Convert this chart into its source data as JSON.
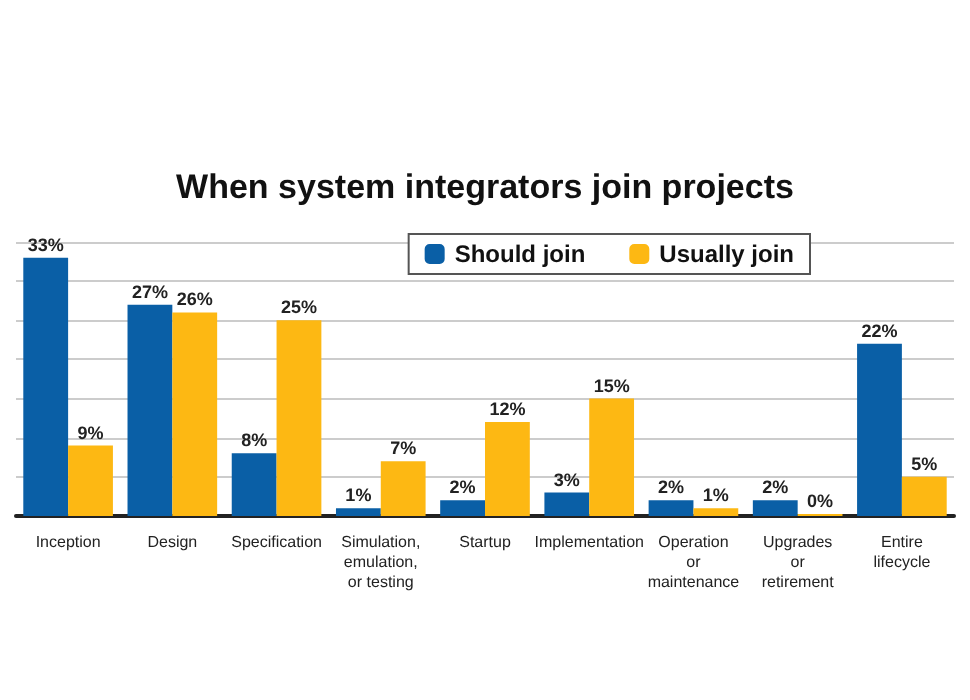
{
  "chart_data": {
    "type": "bar",
    "title": "When system integrators join projects",
    "categories": [
      "Inception",
      "Design",
      "Specification",
      "Simulation,\nemulation,\nor testing",
      "Startup",
      "Implementation",
      "Operation\nor\nmaintenance",
      "Upgrades\nor\nretirement",
      "Entire\nlifecycle"
    ],
    "series": [
      {
        "name": "Should join",
        "color": "#0a5fa6",
        "values": [
          33,
          27,
          8,
          1,
          2,
          3,
          2,
          2,
          22
        ],
        "value_labels": [
          "33%",
          "27%",
          "8%",
          "1%",
          "2%",
          "3%",
          "2%",
          "2%",
          "22%"
        ]
      },
      {
        "name": "Usually join",
        "color": "#fdb813",
        "values": [
          9,
          26,
          25,
          7,
          12,
          15,
          1,
          0,
          5
        ],
        "value_labels": [
          "9%",
          "26%",
          "25%",
          "7%",
          "12%",
          "15%",
          "1%",
          "0%",
          "5%"
        ]
      }
    ],
    "ylim": [
      0,
      35
    ],
    "yticks": [
      {
        "value": 0,
        "label": null
      },
      {
        "value": 5,
        "label": null
      },
      {
        "value": 10,
        "label": null
      },
      {
        "value": 15,
        "label": null
      },
      {
        "value": 20,
        "label": null
      },
      {
        "value": 25,
        "label": null
      },
      {
        "value": 30,
        "label": null
      },
      {
        "value": 35,
        "label": null
      }
    ],
    "grid": "y",
    "legend": "top right",
    "tick_labels": "x"
  }
}
